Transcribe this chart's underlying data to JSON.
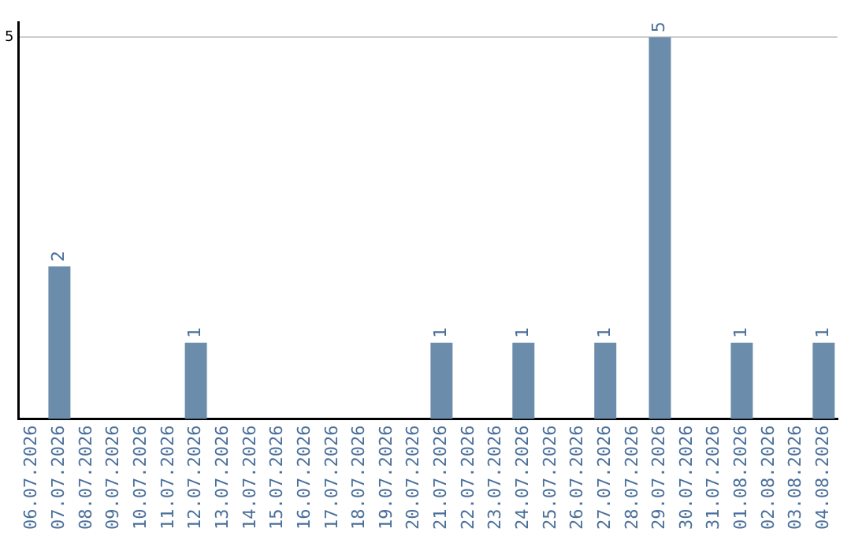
{
  "chart_data": {
    "type": "bar",
    "categories": [
      "06.07.2026",
      "07.07.2026",
      "08.07.2026",
      "09.07.2026",
      "10.07.2026",
      "11.07.2026",
      "12.07.2026",
      "13.07.2026",
      "14.07.2026",
      "15.07.2026",
      "16.07.2026",
      "17.07.2026",
      "18.07.2026",
      "19.07.2026",
      "20.07.2026",
      "21.07.2026",
      "22.07.2026",
      "23.07.2026",
      "24.07.2026",
      "25.07.2026",
      "26.07.2026",
      "27.07.2026",
      "28.07.2026",
      "29.07.2026",
      "30.07.2026",
      "31.07.2026",
      "01.08.2026",
      "02.08.2026",
      "03.08.2026",
      "04.08.2026"
    ],
    "values": [
      0,
      2,
      0,
      0,
      0,
      0,
      1,
      0,
      0,
      0,
      0,
      0,
      0,
      0,
      0,
      1,
      0,
      0,
      1,
      0,
      0,
      1,
      0,
      5,
      0,
      0,
      1,
      0,
      0,
      1
    ],
    "value_labels": [
      null,
      "2",
      null,
      null,
      null,
      null,
      "1",
      null,
      null,
      null,
      null,
      null,
      null,
      null,
      null,
      "1",
      null,
      null,
      "1",
      null,
      null,
      "1",
      null,
      "5",
      null,
      null,
      "1",
      null,
      null,
      "1"
    ],
    "color": "#6b8cab",
    "ylim": [
      0,
      5.2
    ],
    "yticks": [
      5
    ],
    "grid": "y",
    "legend": false
  }
}
